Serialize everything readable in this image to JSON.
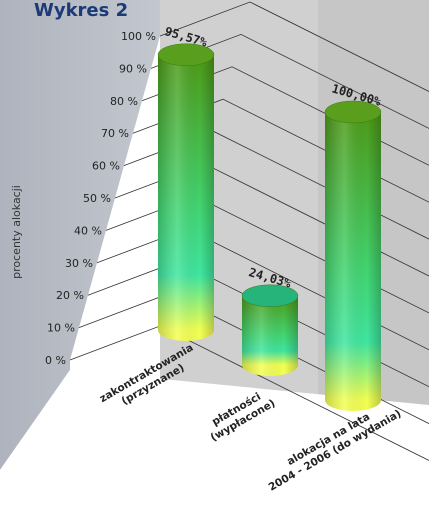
{
  "chart_data": {
    "type": "bar",
    "title": "Wykres 2",
    "ylabel": "procenty alokacji",
    "ylim": [
      0,
      100
    ],
    "y_ticks": [
      "0 %",
      "10 %",
      "20 %",
      "30 %",
      "40 %",
      "50 %",
      "60 %",
      "70 %",
      "80 %",
      "90 %",
      "100 %"
    ],
    "categories": [
      {
        "line1": "zakontraktowania",
        "line2": "(przyznane)"
      },
      {
        "line1": "płatności",
        "line2": "(wypłacone)"
      },
      {
        "line1": "alokacja na lata",
        "line2": "2004 - 2006 (do wydania)"
      }
    ],
    "values": [
      95.57,
      24.03,
      100.0
    ],
    "value_labels": [
      "95,57%",
      "24,03%",
      "100,00%"
    ],
    "grid": true,
    "colors": {
      "bar_top": "#4e9a16",
      "bar_mid": "#3fe08f",
      "bar_bottom": "#f2ff52",
      "back_wall": "#c8c8c8",
      "side_wall": "#b7bcc6",
      "title": "#1b3a77",
      "text": "#222222"
    }
  }
}
